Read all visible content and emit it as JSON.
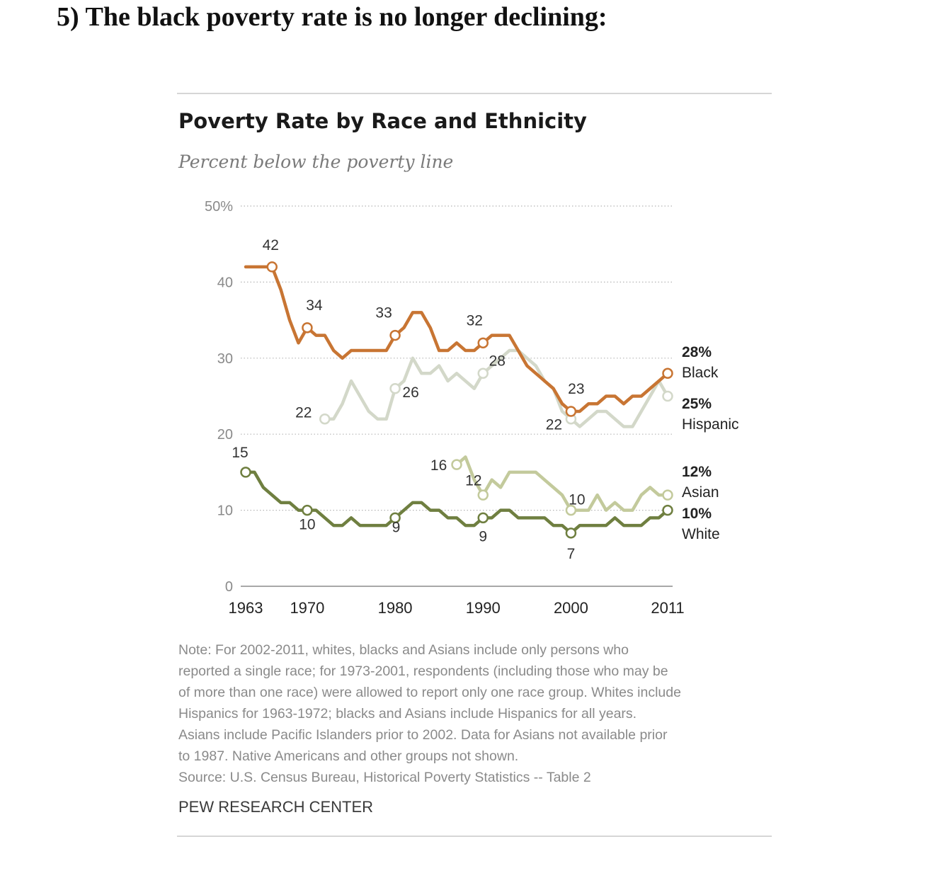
{
  "heading": "5) The black poverty rate is no longer declining:",
  "chart_data": {
    "type": "line",
    "title": "Poverty Rate by Race and Ethnicity",
    "subtitle": "Percent below the poverty line",
    "ylim": [
      0,
      50
    ],
    "y_ticks": [
      "0",
      "10",
      "20",
      "30",
      "40",
      "50%"
    ],
    "y_tick_values": [
      0,
      10,
      20,
      30,
      40,
      50
    ],
    "x_ticks": [
      "1963",
      "1970",
      "1980",
      "1990",
      "2000",
      "2011"
    ],
    "x_tick_values": [
      1963,
      1970,
      1980,
      1990,
      2000,
      2011
    ],
    "grid": true,
    "series": [
      {
        "name": "Hispanic",
        "end_label": "25%",
        "color": "#d3d8c9",
        "x": [
          1972,
          1973,
          1974,
          1975,
          1976,
          1977,
          1978,
          1979,
          1980,
          1981,
          1982,
          1983,
          1984,
          1985,
          1986,
          1987,
          1988,
          1989,
          1990,
          1991,
          1992,
          1993,
          1994,
          1995,
          1996,
          1997,
          1998,
          1999,
          2000,
          2001,
          2002,
          2003,
          2004,
          2005,
          2006,
          2007,
          2008,
          2009,
          2010,
          2011
        ],
        "y": [
          22,
          22,
          24,
          27,
          25,
          23,
          22,
          22,
          26,
          27,
          30,
          28,
          28,
          29,
          27,
          28,
          27,
          26,
          28,
          29,
          30,
          31,
          31,
          30,
          29,
          27,
          26,
          23,
          22,
          21,
          22,
          23,
          23,
          22,
          21,
          21,
          23,
          25,
          27,
          25
        ],
        "labels": [
          {
            "x": 1972,
            "text": "22"
          },
          {
            "x": 1980,
            "text": "26"
          },
          {
            "x": 1990,
            "text": "28"
          },
          {
            "x": 2000,
            "text": "22"
          }
        ],
        "markers": [
          1972,
          1980,
          1990,
          2000,
          2011
        ]
      },
      {
        "name": "Black",
        "end_label": "28%",
        "color": "#c87533",
        "x": [
          1963,
          1966,
          1967,
          1968,
          1969,
          1970,
          1971,
          1972,
          1973,
          1974,
          1975,
          1976,
          1977,
          1978,
          1979,
          1980,
          1981,
          1982,
          1983,
          1984,
          1985,
          1986,
          1987,
          1988,
          1989,
          1990,
          1991,
          1992,
          1993,
          1994,
          1995,
          1996,
          1997,
          1998,
          1999,
          2000,
          2001,
          2002,
          2003,
          2004,
          2005,
          2006,
          2007,
          2008,
          2009,
          2010,
          2011
        ],
        "y": [
          42,
          42,
          39,
          35,
          32,
          34,
          33,
          33,
          31,
          30,
          31,
          31,
          31,
          31,
          31,
          33,
          34,
          36,
          36,
          34,
          31,
          31,
          32,
          31,
          31,
          32,
          33,
          33,
          33,
          31,
          29,
          28,
          27,
          26,
          24,
          23,
          23,
          24,
          24,
          25,
          25,
          24,
          25,
          25,
          26,
          27,
          28
        ],
        "labels": [
          {
            "x": 1966,
            "text": "42"
          },
          {
            "x": 1970,
            "text": "34"
          },
          {
            "x": 1980,
            "text": "33"
          },
          {
            "x": 1990,
            "text": "32"
          },
          {
            "x": 2001,
            "text": "23"
          }
        ],
        "markers": [
          1966,
          1970,
          1980,
          1990,
          2000,
          2011
        ]
      },
      {
        "name": "Asian",
        "end_label": "12%",
        "color": "#c3ca9c",
        "x": [
          1987,
          1988,
          1989,
          1990,
          1991,
          1992,
          1993,
          1994,
          1995,
          1996,
          1997,
          1998,
          1999,
          2000,
          2001,
          2002,
          2003,
          2004,
          2005,
          2006,
          2007,
          2008,
          2009,
          2010,
          2011
        ],
        "y": [
          16,
          17,
          14,
          12,
          14,
          13,
          15,
          15,
          15,
          15,
          14,
          13,
          12,
          10,
          10,
          10,
          12,
          10,
          11,
          10,
          10,
          12,
          13,
          12,
          12
        ],
        "labels": [
          {
            "x": 1986,
            "text": "16"
          },
          {
            "x": 1989,
            "text": "12"
          },
          {
            "x": 2001,
            "text": "10"
          }
        ],
        "markers": [
          1987,
          1990,
          2000,
          2011
        ]
      },
      {
        "name": "White",
        "end_label": "10%",
        "color": "#6f7f40",
        "x": [
          1963,
          1964,
          1965,
          1966,
          1967,
          1968,
          1969,
          1970,
          1971,
          1972,
          1973,
          1974,
          1975,
          1976,
          1977,
          1978,
          1979,
          1980,
          1981,
          1982,
          1983,
          1984,
          1985,
          1986,
          1987,
          1988,
          1989,
          1990,
          1991,
          1992,
          1993,
          1994,
          1995,
          1996,
          1997,
          1998,
          1999,
          2000,
          2001,
          2002,
          2003,
          2004,
          2005,
          2006,
          2007,
          2008,
          2009,
          2010,
          2011
        ],
        "y": [
          15,
          15,
          13,
          12,
          11,
          11,
          10,
          10,
          10,
          9,
          8,
          8,
          9,
          8,
          8,
          8,
          8,
          9,
          10,
          11,
          11,
          10,
          10,
          9,
          9,
          8,
          8,
          9,
          9,
          10,
          10,
          9,
          9,
          9,
          9,
          8,
          8,
          7,
          8,
          8,
          8,
          8,
          9,
          8,
          8,
          8,
          9,
          9,
          10
        ],
        "labels": [
          {
            "x": 1963,
            "text": "15"
          },
          {
            "x": 1970,
            "text": "10"
          },
          {
            "x": 1981,
            "text": "9"
          },
          {
            "x": 1990,
            "text": "9"
          },
          {
            "x": 2000,
            "text": "7"
          }
        ],
        "markers": [
          1963,
          1970,
          1980,
          1990,
          2000,
          2011
        ]
      }
    ]
  },
  "note_lines": [
    "Note: For 2002-2011, whites, blacks and Asians include only persons who",
    "reported a single race; for 1973-2001, respondents (including those who may be",
    "of more than one race) were allowed to report only one race group. Whites include",
    "Hispanics for 1963-1972; blacks and Asians include Hispanics for all years.",
    "Asians include Pacific Islanders prior to 2002. Data for Asians not available prior",
    "to 1987. Native Americans and other groups not shown.",
    "Source: U.S. Census Bureau, Historical Poverty Statistics -- Table 2"
  ],
  "credit": "PEW RESEARCH CENTER"
}
